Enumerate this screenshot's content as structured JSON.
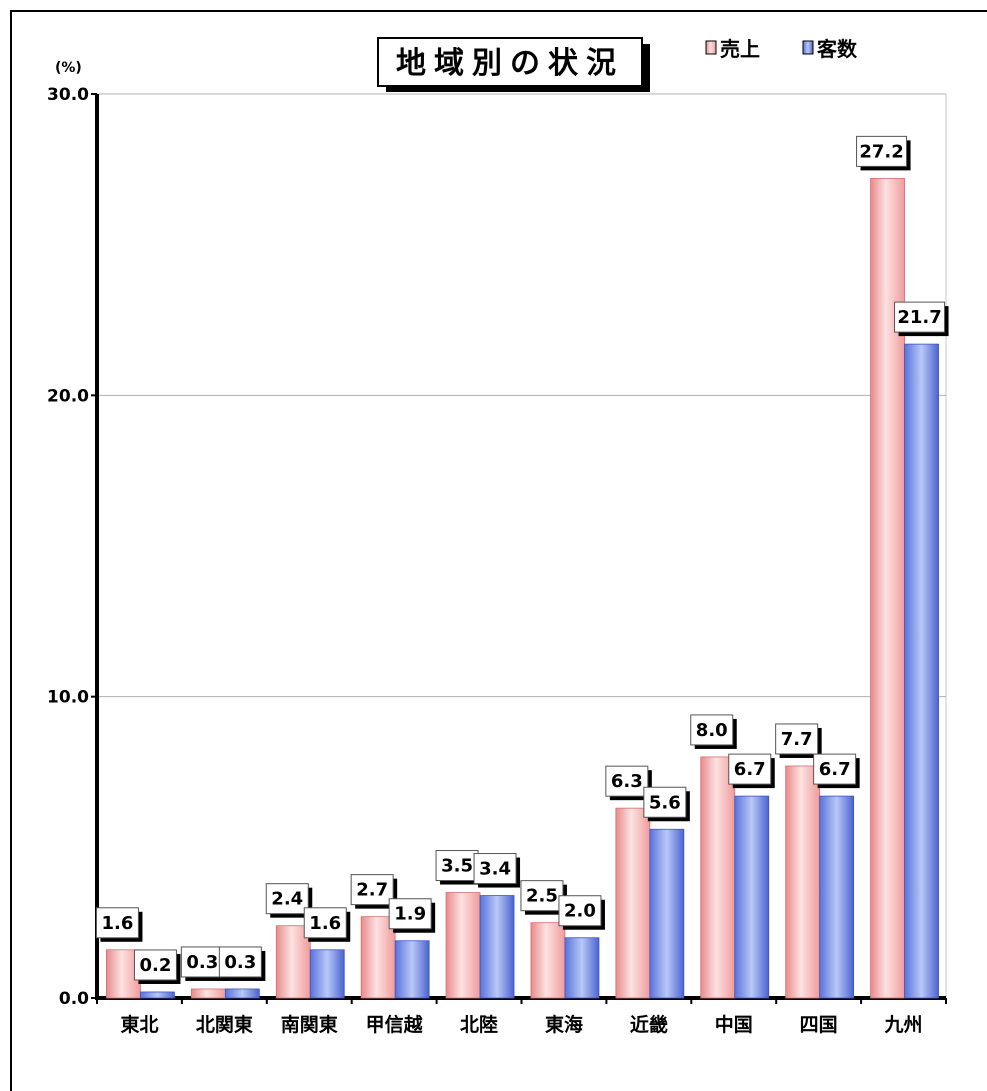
{
  "chart_data": {
    "type": "bar",
    "title": "地域別の状況",
    "ylabel": "(%)",
    "categories": [
      "東北",
      "北関東",
      "南関東",
      "甲信越",
      "北陸",
      "東海",
      "近畿",
      "中国",
      "四国",
      "九州"
    ],
    "series": [
      {
        "name": "売上",
        "values": [
          1.6,
          0.3,
          2.4,
          2.7,
          3.5,
          2.5,
          6.3,
          8.0,
          7.7,
          27.2
        ],
        "color": "#f4a0a0"
      },
      {
        "name": "客数",
        "values": [
          0.2,
          0.3,
          1.6,
          1.9,
          3.4,
          2.0,
          5.6,
          6.7,
          6.7,
          21.7
        ],
        "color": "#6f86e6"
      }
    ],
    "data_labels": [
      [
        "1.6",
        "0.3",
        "2.4",
        "2.7",
        "3.5",
        "2.5",
        "6.3",
        "8.0",
        "7.7",
        "27.2"
      ],
      [
        "0.2",
        "0.3",
        "1.6",
        "1.9",
        "3.4",
        "2.0",
        "5.6",
        "6.7",
        "6.7",
        "21.7"
      ]
    ],
    "yticks": [
      "0.0",
      "10.0",
      "20.0",
      "30.0"
    ],
    "ylim": [
      0,
      30
    ],
    "grid": true,
    "legend_position": "top-right"
  }
}
